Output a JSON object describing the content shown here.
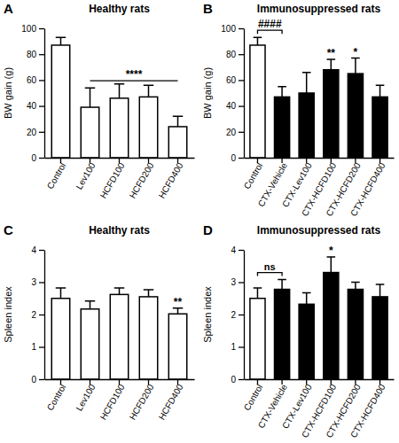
{
  "chart_data": [
    {
      "type": "bar",
      "panel_label": "A",
      "title": "Healthy rats",
      "ylabel": "BW gain (g)",
      "categories": [
        "Control",
        "Lev100",
        "HCFD100",
        "HCFD200",
        "HCFD400"
      ],
      "values": [
        87,
        39,
        46,
        47,
        24
      ],
      "errors": [
        6,
        15,
        11,
        9,
        8
      ],
      "colors": [
        "#ffffff",
        "#ffffff",
        "#ffffff",
        "#ffffff",
        "#ffffff"
      ],
      "ylim": [
        0,
        100
      ],
      "yticks": [
        0,
        20,
        40,
        60,
        80,
        100
      ],
      "annotations": [
        {
          "text": "****",
          "categories": [
            "Lev100",
            "HCFD400"
          ]
        }
      ]
    },
    {
      "type": "bar",
      "panel_label": "B",
      "title": "Immunosuppressed rats",
      "ylabel": "BW gain (g)",
      "categories": [
        "Control",
        "CTX-Vehicle",
        "CTX-Lev100",
        "CTX-HCFD100",
        "CTX-HCFD200",
        "CTX-HCFD400"
      ],
      "values": [
        87,
        47,
        50,
        68,
        65,
        47
      ],
      "errors": [
        6,
        8,
        16,
        8,
        12,
        9
      ],
      "colors": [
        "#ffffff",
        "#000000",
        "#000000",
        "#000000",
        "#000000",
        "#000000"
      ],
      "ylim": [
        0,
        100
      ],
      "yticks": [
        0,
        20,
        40,
        60,
        80,
        100
      ],
      "annotations": [
        {
          "text": "####",
          "categories": [
            "Control",
            "CTX-Vehicle"
          ]
        },
        {
          "text": "**",
          "categories": [
            "CTX-HCFD100"
          ]
        },
        {
          "text": "*",
          "categories": [
            "CTX-HCFD200"
          ]
        }
      ]
    },
    {
      "type": "bar",
      "panel_label": "C",
      "title": "Healthy rats",
      "ylabel": "Spleen index",
      "categories": [
        "Control",
        "Lev100",
        "HCFD100",
        "HCFD200",
        "HCFD400"
      ],
      "values": [
        2.5,
        2.17,
        2.62,
        2.55,
        2.02
      ],
      "errors": [
        0.32,
        0.25,
        0.2,
        0.22,
        0.18
      ],
      "colors": [
        "#ffffff",
        "#ffffff",
        "#ffffff",
        "#ffffff",
        "#ffffff"
      ],
      "ylim": [
        0,
        4
      ],
      "yticks": [
        0,
        1,
        2,
        3,
        4
      ],
      "annotations": [
        {
          "text": "**",
          "categories": [
            "HCFD400"
          ]
        }
      ]
    },
    {
      "type": "bar",
      "panel_label": "D",
      "title": "Immunosuppressed rats",
      "ylabel": "Spleen index",
      "categories": [
        "Control",
        "CTX-Vehicle",
        "CTX-Lev100",
        "CTX-HCFD100",
        "CTX-HCFD200",
        "CTX-HCFD400"
      ],
      "values": [
        2.5,
        2.78,
        2.32,
        3.3,
        2.78,
        2.55
      ],
      "errors": [
        0.32,
        0.3,
        0.35,
        0.48,
        0.22,
        0.38
      ],
      "colors": [
        "#ffffff",
        "#000000",
        "#000000",
        "#000000",
        "#000000",
        "#000000"
      ],
      "ylim": [
        0,
        4
      ],
      "yticks": [
        0,
        1,
        2,
        3,
        4
      ],
      "annotations": [
        {
          "text": "ns",
          "categories": [
            "Control",
            "CTX-Vehicle"
          ]
        },
        {
          "text": "*",
          "categories": [
            "CTX-HCFD100"
          ]
        }
      ]
    }
  ]
}
